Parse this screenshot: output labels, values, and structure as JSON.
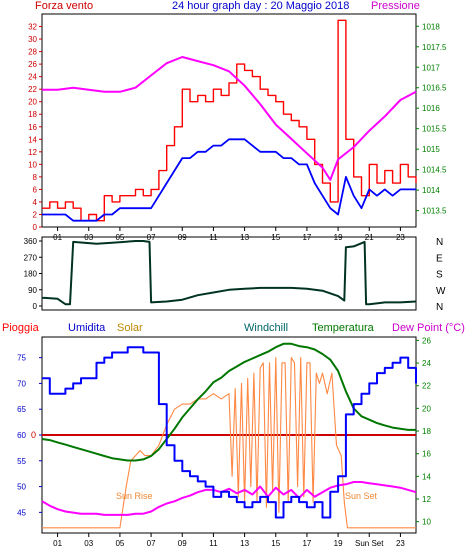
{
  "header": {
    "left_label": "Forza vento",
    "title": "24 hour graph day : 20 Maggio 2018",
    "right_label": "Pressione"
  },
  "hour_ticks": [
    "01",
    "03",
    "05",
    "07",
    "09",
    "11",
    "13",
    "15",
    "17",
    "19",
    "21",
    "23"
  ],
  "hour_ticks_bottom": [
    "01",
    "03",
    "05",
    "07",
    "09",
    "11",
    "13",
    "15",
    "17",
    "19",
    "Sun Set",
    "23"
  ],
  "colors": {
    "wind": "#ff0000",
    "wind_avg": "#0000ff",
    "pressure": "#ff00ff",
    "direction": "#003322",
    "humidity": "#0000ff",
    "solar": "#ff8844",
    "temperature": "#007700",
    "dewpoint": "#ff00ff",
    "rain": "#cc0000",
    "axis_left": "#cc0000",
    "axis_right": "#008000",
    "axis_blue": "#0000cc"
  },
  "chart_data": [
    {
      "type": "line",
      "ylim": [
        0,
        34
      ],
      "yticks": [
        0,
        2,
        4,
        6,
        8,
        10,
        12,
        14,
        16,
        18,
        20,
        22,
        24,
        26,
        28,
        30,
        32
      ],
      "y2lim": [
        1013.1,
        1018.3
      ],
      "y2ticks": [
        1013.5,
        1014,
        1014.5,
        1015,
        1015.5,
        1016,
        1016.5,
        1017,
        1017.5,
        1018
      ],
      "series": [
        {
          "name": "gust",
          "x": [
            0,
            0.5,
            1,
            1.5,
            2,
            2.5,
            3,
            3.5,
            4,
            4.5,
            5,
            5.5,
            6,
            6.5,
            7,
            7.5,
            8,
            8.5,
            9,
            9.5,
            10,
            10.5,
            11,
            11.5,
            12,
            12.5,
            13,
            13.5,
            14,
            14.5,
            15,
            15.5,
            16,
            16.5,
            17,
            17.5,
            18,
            18.5,
            19,
            19.5,
            20,
            20.5,
            21,
            21.5,
            22,
            22.5,
            23,
            23.5,
            24
          ],
          "values": [
            3,
            4,
            3,
            4,
            3,
            1,
            2,
            1,
            5,
            4,
            5,
            5,
            6,
            5,
            6,
            9,
            13,
            16,
            22,
            20,
            21,
            20,
            22,
            21,
            23,
            26,
            25,
            24,
            22,
            21,
            20,
            18,
            17,
            16,
            14,
            10,
            7,
            4,
            33,
            14,
            8,
            5,
            10,
            7,
            9,
            7,
            10,
            8,
            7
          ]
        },
        {
          "name": "avg",
          "x": [
            0,
            0.5,
            1,
            1.5,
            2,
            2.5,
            3,
            3.5,
            4,
            4.5,
            5,
            5.5,
            6,
            6.5,
            7,
            7.5,
            8,
            8.5,
            9,
            9.5,
            10,
            10.5,
            11,
            11.5,
            12,
            12.5,
            13,
            13.5,
            14,
            14.5,
            15,
            15.5,
            16,
            16.5,
            17,
            17.5,
            18,
            18.5,
            19,
            19.5,
            20,
            20.5,
            21,
            21.5,
            22,
            22.5,
            23,
            23.5,
            24
          ],
          "values": [
            2,
            2,
            2,
            2,
            1,
            1,
            1,
            1,
            2,
            2,
            3,
            3,
            3,
            3,
            3,
            5,
            7,
            9,
            11,
            11,
            12,
            12,
            13,
            13,
            14,
            14,
            14,
            13,
            12,
            12,
            12,
            11,
            11,
            10,
            10,
            7,
            5,
            3,
            2,
            8,
            5,
            3,
            6,
            5,
            6,
            5,
            6,
            6,
            6
          ]
        },
        {
          "name": "pressure",
          "x": [
            0,
            1,
            2,
            3,
            4,
            5,
            6,
            7,
            8,
            9,
            10,
            11,
            12,
            13,
            14,
            15,
            16,
            17,
            18,
            18.5,
            19,
            20,
            21,
            22,
            23,
            24
          ],
          "values": [
            1016.45,
            1016.45,
            1016.5,
            1016.45,
            1016.4,
            1016.4,
            1016.5,
            1016.8,
            1017.1,
            1017.25,
            1017.15,
            1017.05,
            1016.9,
            1016.55,
            1016.1,
            1015.6,
            1015.25,
            1014.9,
            1014.55,
            1014.25,
            1014.75,
            1015.05,
            1015.45,
            1015.8,
            1016.2,
            1016.4
          ]
        }
      ]
    },
    {
      "type": "line",
      "ylim": [
        0,
        360
      ],
      "yticks": [
        0,
        90,
        180,
        270,
        360
      ],
      "y2labels": [
        "N",
        "W",
        "S",
        "E",
        "N"
      ],
      "series": [
        {
          "name": "direction",
          "x": [
            0,
            0.2,
            1,
            1.5,
            1.8,
            2.0,
            3.5,
            4.5,
            6.0,
            6.5,
            6.9,
            7.0,
            8,
            9,
            10,
            11,
            12,
            13,
            14,
            15,
            16,
            17,
            18,
            19,
            19.4,
            19.5,
            20,
            20.7,
            20.8,
            21,
            22,
            23,
            24
          ],
          "values": [
            45,
            45,
            40,
            10,
            10,
            355,
            345,
            350,
            360,
            360,
            355,
            20,
            25,
            35,
            60,
            75,
            90,
            95,
            100,
            100,
            100,
            95,
            85,
            55,
            30,
            325,
            330,
            355,
            10,
            10,
            20,
            20,
            25
          ]
        }
      ]
    },
    {
      "type": "line",
      "ylim": [
        41,
        79
      ],
      "yticks": [
        45,
        50,
        55,
        60,
        65,
        70,
        75
      ],
      "y2lim": [
        9,
        26.3
      ],
      "y2ticks": [
        10,
        12,
        14,
        16,
        18,
        20,
        22,
        24,
        26
      ],
      "annotations": [
        "Sun Rise",
        "Sun Set"
      ],
      "series": [
        {
          "name": "humidity",
          "x": [
            0,
            0.5,
            1,
            1.5,
            2,
            2.5,
            3,
            3.5,
            4,
            4.5,
            5,
            5.5,
            6,
            6.5,
            7,
            7.5,
            8,
            8.5,
            9,
            9.5,
            10,
            10.5,
            11,
            11.5,
            12,
            12.5,
            13,
            13.5,
            14,
            14.5,
            15,
            15.5,
            16,
            16.5,
            17,
            17.5,
            18,
            18.5,
            19,
            19.5,
            20,
            20.5,
            21,
            21.5,
            22,
            22.5,
            23,
            23.5,
            24
          ],
          "values": [
            71,
            68,
            68,
            69,
            70,
            71,
            71,
            74,
            75,
            76,
            76,
            77,
            77,
            76,
            76,
            66,
            58,
            55,
            53,
            52,
            51,
            50,
            48,
            49,
            48,
            47,
            46,
            47,
            48,
            47,
            44,
            47,
            48,
            47,
            46,
            47,
            44,
            49,
            52,
            64,
            66,
            68,
            70,
            72,
            73,
            74,
            75,
            73,
            70
          ]
        },
        {
          "name": "dewpoint",
          "x": [
            0,
            0.5,
            1,
            1.5,
            2,
            2.5,
            3,
            3.5,
            4,
            4.5,
            5,
            5.5,
            6,
            6.5,
            7,
            7.5,
            8,
            8.5,
            9,
            9.5,
            10,
            10.5,
            11,
            11.5,
            12,
            12.5,
            13,
            13.5,
            14,
            14.5,
            15,
            15.5,
            16,
            16.5,
            17,
            17.5,
            18,
            18.5,
            19,
            19.5,
            20,
            20.5,
            21,
            21.5,
            22,
            22.5,
            23,
            23.5,
            24
          ],
          "values": [
            11.8,
            11.4,
            11.1,
            10.9,
            10.8,
            10.7,
            10.7,
            10.7,
            10.6,
            10.6,
            10.6,
            10.6,
            10.7,
            10.7,
            10.9,
            11.3,
            11.6,
            11.8,
            12.1,
            12.3,
            12.6,
            12.8,
            12.8,
            12.6,
            12.9,
            12.5,
            12.8,
            12.4,
            13.1,
            12.2,
            13.0,
            12.4,
            12.8,
            12.1,
            12.8,
            12.2,
            12.6,
            13.0,
            13.2,
            13.3,
            13.5,
            13.5,
            13.4,
            13.3,
            13.2,
            13.1,
            13.0,
            12.8,
            12.6
          ]
        },
        {
          "name": "solar",
          "x": [
            0,
            1,
            2,
            3,
            4,
            5,
            5.4,
            5.7,
            6.0,
            6.3,
            6.6,
            7,
            7.5,
            8,
            8.5,
            9,
            9.5,
            10,
            10.5,
            11,
            11.5,
            12,
            12.2,
            12.4,
            12.6,
            12.8,
            13,
            13.2,
            13.4,
            13.6,
            13.8,
            14,
            14.2,
            14.4,
            14.6,
            14.8,
            15,
            15.2,
            15.4,
            15.6,
            15.8,
            16,
            16.2,
            16.4,
            16.6,
            16.8,
            17,
            17.2,
            17.4,
            17.6,
            17.8,
            18,
            18.3,
            18.6,
            18.9,
            19.2,
            19.4,
            19.6,
            19.8,
            20,
            21,
            22,
            23,
            24
          ],
          "values": [
            42,
            42,
            42,
            42,
            42,
            42,
            50,
            55,
            56,
            57,
            56,
            56,
            58,
            62,
            65,
            66,
            66,
            67,
            67,
            68,
            67,
            68,
            52,
            69,
            48,
            70,
            47,
            71,
            50,
            72,
            47,
            73,
            74,
            46,
            74,
            49,
            75,
            45,
            74,
            74,
            47,
            75,
            74,
            50,
            75,
            48,
            74,
            74,
            47,
            72,
            70,
            72,
            68,
            72,
            58,
            56,
            47,
            42,
            42,
            42,
            42,
            42,
            42,
            42
          ]
        },
        {
          "name": "temperature",
          "x": [
            0,
            0.5,
            1,
            1.5,
            2,
            2.5,
            3,
            3.5,
            4,
            4.5,
            5,
            5.5,
            6,
            6.5,
            7,
            7.5,
            8,
            8.5,
            9,
            9.5,
            10,
            10.5,
            11,
            11.5,
            12,
            12.5,
            13,
            13.5,
            14,
            14.5,
            15,
            15.5,
            16,
            16.5,
            17,
            17.5,
            18,
            18.5,
            19,
            19.5,
            20,
            20.5,
            21,
            21.5,
            22,
            22.5,
            23,
            23.5,
            24
          ],
          "values": [
            17.3,
            17.2,
            17.0,
            16.8,
            16.6,
            16.4,
            16.2,
            16.0,
            15.8,
            15.6,
            15.5,
            15.4,
            15.4,
            15.5,
            15.8,
            16.4,
            17.3,
            18.2,
            19.2,
            20.0,
            20.8,
            21.5,
            22.3,
            22.7,
            23.3,
            23.7,
            24.1,
            24.4,
            24.7,
            25.0,
            25.4,
            25.7,
            25.7,
            25.5,
            25.4,
            25.2,
            24.8,
            24.3,
            23.3,
            21.5,
            20.0,
            19.3,
            19.0,
            18.7,
            18.5,
            18.3,
            18.2,
            18.1,
            18.1
          ]
        },
        {
          "name": "rain",
          "x": [
            0,
            24
          ],
          "values": [
            60,
            60
          ]
        }
      ]
    }
  ],
  "lower": {
    "label_pioggia": "Pioggia",
    "label_umidita": "Umidita",
    "label_solar": "Solar",
    "label_windchill": "Windchill",
    "label_temperatura": "Temperatura",
    "label_dewpoint": "Dew Point (°C)",
    "rain_tick": "0",
    "sunrise_label": "Sun Rise",
    "sunset_label": "Sun Set"
  }
}
